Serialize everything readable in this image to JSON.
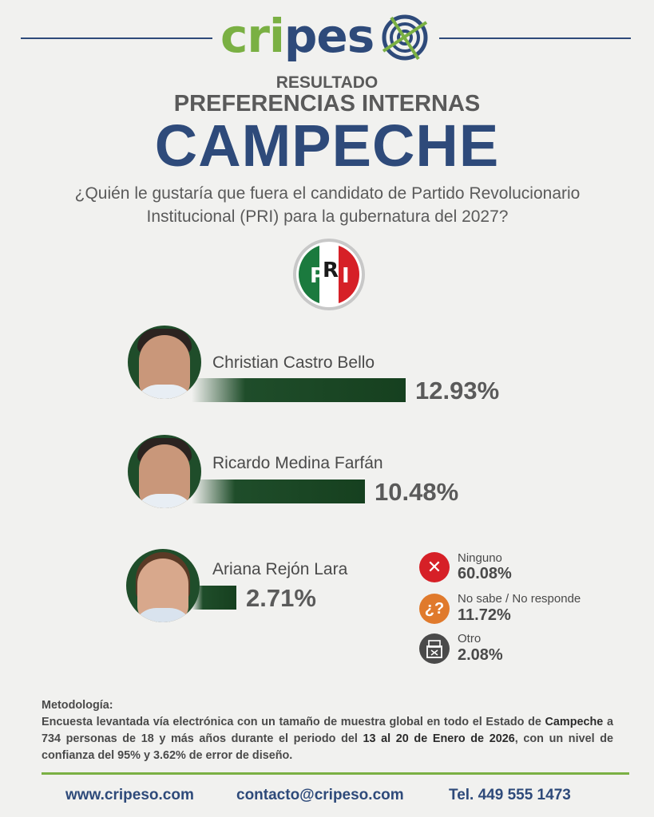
{
  "brand": {
    "logo_green": "cripes",
    "logo_blue": "",
    "logo_full": "cripeso"
  },
  "header": {
    "kicker": "RESULTADO",
    "subtitle": "PREFERENCIAS INTERNAS",
    "title": "CAMPECHE",
    "question": "¿Quién le gustaría que fuera el candidato de Partido Revolucionario Institucional (PRI) para la gubernatura del 2027?"
  },
  "party_logo": {
    "text": "PRI",
    "colors": [
      "#1b7a3e",
      "#ffffff",
      "#d62027"
    ]
  },
  "chart_data": {
    "type": "bar",
    "title": "",
    "categories": [
      "Christian Castro Bello",
      "Ricardo Medina Farfán",
      "Ariana Rejón Lara"
    ],
    "values": [
      12.93,
      10.48,
      2.71
    ],
    "value_labels": [
      "12.93%",
      "10.48%",
      "2.71%"
    ],
    "bar_color": "#1f4d2a",
    "other_responses": [
      {
        "label": "Ninguno",
        "value": 60.08,
        "display": "60.08%",
        "icon": "x-icon",
        "color": "#d62027"
      },
      {
        "label": "No sabe / No responde",
        "value": 11.72,
        "display": "11.72%",
        "icon": "question-icon",
        "color": "#e07a2c"
      },
      {
        "label": "Otro",
        "value": 2.08,
        "display": "2.08%",
        "icon": "ballot-box-icon",
        "color": "#4a4a4a"
      }
    ]
  },
  "methodology": {
    "heading": "Metodología:",
    "text_1": "Encuesta levantada vía electrónica con un tamaño de muestra global en todo el Estado de ",
    "text_bold_1": "Campeche",
    "text_2": " a 734 personas de 18 y más años durante el periodo del ",
    "text_bold_2": "13 al 20 de Enero de 2026",
    "text_3": ", con un nivel de confianza del 95% y 3.62% de error de diseño."
  },
  "footer": {
    "website": "www.cripeso.com",
    "email": "contacto@cripeso.com",
    "phone": "Tel. 449 555 1473"
  }
}
